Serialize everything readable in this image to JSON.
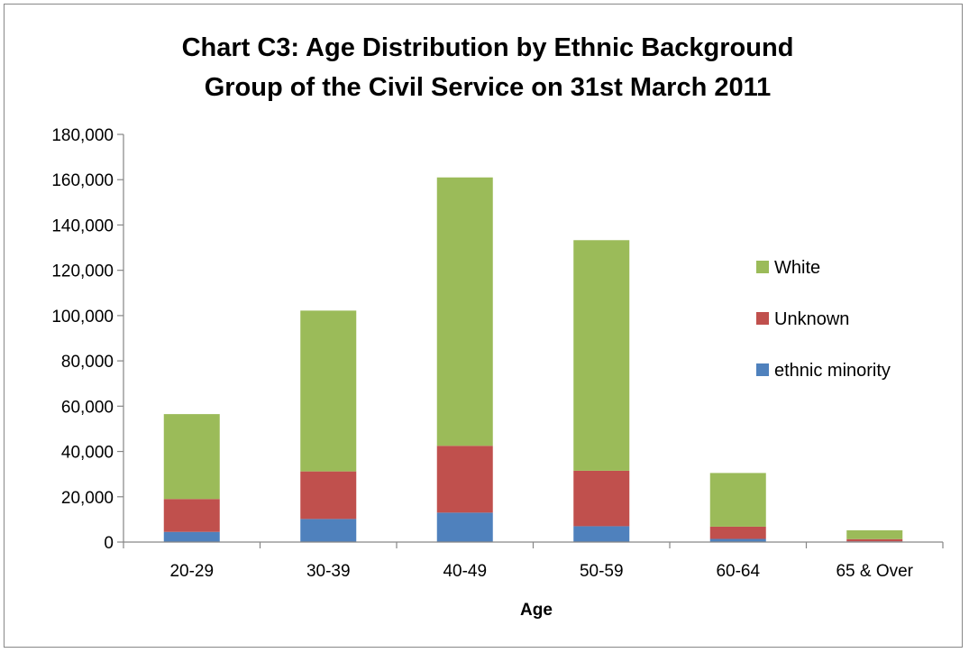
{
  "chart_data": {
    "type": "bar",
    "stacked": true,
    "title": [
      "Chart C3: Age Distribution by Ethnic Background",
      "Group of the Civil Service on 31st March 2011"
    ],
    "xlabel": "Age",
    "ylabel": "",
    "ylim": [
      0,
      180000
    ],
    "yticks": [
      0,
      20000,
      40000,
      60000,
      80000,
      100000,
      120000,
      140000,
      160000,
      180000
    ],
    "ytick_labels": [
      "0",
      "20,000",
      "40,000",
      "60,000",
      "80,000",
      "100,000",
      "120,000",
      "140,000",
      "160,000",
      "180,000"
    ],
    "categories": [
      "20-29",
      "30-39",
      "40-49",
      "50-59",
      "60-64",
      "65 & Over"
    ],
    "grid": false,
    "legend_position": "right",
    "series": [
      {
        "name": "ethnic minority",
        "color": "#4f81bd",
        "values": [
          4500,
          10200,
          13000,
          7000,
          1400,
          300
        ]
      },
      {
        "name": "Unknown",
        "color": "#c0504d",
        "values": [
          14500,
          21000,
          29500,
          24500,
          5400,
          1000
        ]
      },
      {
        "name": "White",
        "color": "#9bbb59",
        "values": [
          37500,
          71000,
          118500,
          101800,
          23700,
          3900
        ]
      }
    ]
  }
}
